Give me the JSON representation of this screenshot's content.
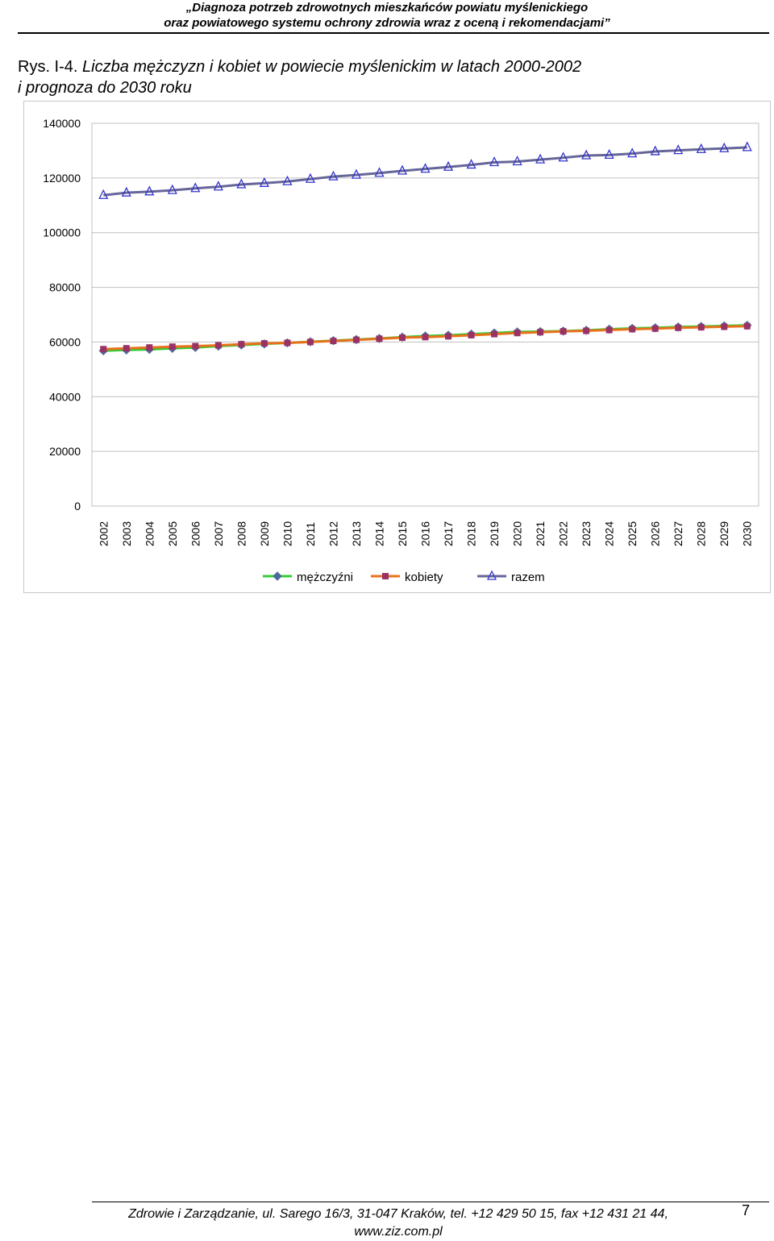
{
  "header": {
    "line1": "„Diagnoza potrzeb zdrowotnych mieszkańców powiatu myślenickiego",
    "line2": "oraz powiatowego systemu ochrony zdrowia wraz z oceną i rekomendacjami”"
  },
  "caption": {
    "label": "Rys. I-4.",
    "title_line1": "Liczba mężczyzn i kobiet w powiecie myślenickim w latach 2000-2002",
    "title_line2": "i prognoza do 2030 roku"
  },
  "chart_data": {
    "type": "line",
    "title": "",
    "xlabel": "",
    "ylabel": "",
    "ylim": [
      0,
      140000
    ],
    "yticks": [
      "0",
      "20000",
      "40000",
      "60000",
      "80000",
      "100000",
      "120000",
      "140000"
    ],
    "grid": "horizontal",
    "legend": "bottom",
    "categories": [
      "2002",
      "2003",
      "2004",
      "2005",
      "2006",
      "2007",
      "2008",
      "2009",
      "2010",
      "2011",
      "2012",
      "2013",
      "2014",
      "2015",
      "2016",
      "2017",
      "2018",
      "2019",
      "2020",
      "2021",
      "2022",
      "2023",
      "2024",
      "2025",
      "2026",
      "2027",
      "2028",
      "2029",
      "2030"
    ],
    "series": [
      {
        "name": "mężczyźni",
        "color": "#33cc33",
        "marker": "diamond",
        "marker_color": "#4a6a9a",
        "values": [
          56800,
          57100,
          57300,
          57700,
          58000,
          58500,
          58900,
          59300,
          59700,
          60100,
          60500,
          60900,
          61300,
          61800,
          62200,
          62500,
          62900,
          63300,
          63700,
          63800,
          64000,
          64300,
          64700,
          65000,
          65200,
          65500,
          65700,
          65900,
          66100
        ]
      },
      {
        "name": "kobiety",
        "color": "#e8721c",
        "marker": "square",
        "marker_color": "#993366",
        "values": [
          57400,
          57700,
          58000,
          58300,
          58500,
          58800,
          59200,
          59500,
          59700,
          60000,
          60400,
          60800,
          61200,
          61600,
          61800,
          62100,
          62500,
          62900,
          63300,
          63600,
          63900,
          64100,
          64400,
          64700,
          64900,
          65200,
          65400,
          65600,
          65800
        ]
      },
      {
        "name": "razem",
        "color": "#666699",
        "marker": "triangle",
        "marker_color": "#3333cc",
        "values": [
          113700,
          114600,
          115000,
          115500,
          116200,
          116800,
          117600,
          118100,
          118700,
          119600,
          120500,
          121100,
          121800,
          122600,
          123300,
          124000,
          124800,
          125700,
          126000,
          126700,
          127400,
          128200,
          128400,
          128900,
          129700,
          130100,
          130500,
          130800,
          131200
        ]
      }
    ]
  },
  "footer": {
    "line1": "Zdrowie i Zarządzanie, ul. Sarego 16/3, 31-047 Kraków, tel. +12 429 50 15, fax +12 431 21 44,",
    "line2": "www.ziz.com.pl",
    "page_number": "7"
  }
}
